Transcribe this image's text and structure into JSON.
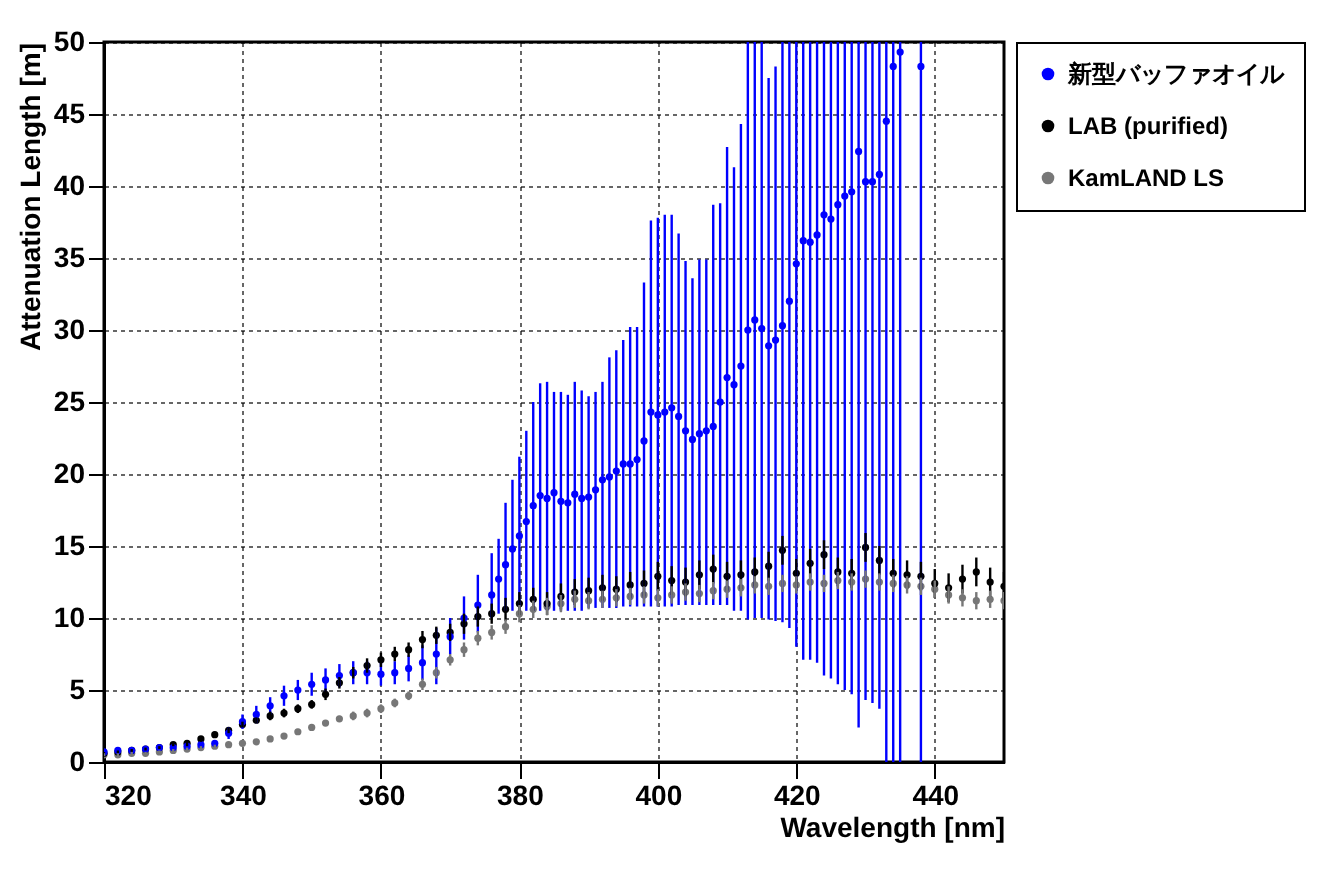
{
  "chart_data": {
    "type": "scatter",
    "xlabel": "Wavelength [nm]",
    "ylabel": "Attenuation Length [m]",
    "xlim": [
      320,
      450
    ],
    "xticks": [
      320,
      340,
      360,
      380,
      400,
      420,
      440
    ],
    "ylim": [
      0,
      50
    ],
    "yticks": [
      0,
      5,
      10,
      15,
      20,
      25,
      30,
      35,
      40,
      45,
      50
    ],
    "grid": true,
    "legend": "top right",
    "marker": "circle",
    "series": [
      {
        "name": "新型バッファオイル",
        "color": "#0000ff",
        "x": [
          320,
          322,
          324,
          326,
          328,
          330,
          332,
          334,
          336,
          338,
          340,
          342,
          344,
          346,
          348,
          350,
          352,
          354,
          356,
          358,
          360,
          362,
          364,
          366,
          368,
          370,
          372,
          374,
          376,
          377,
          378,
          379,
          380,
          381,
          382,
          383,
          384,
          385,
          386,
          387,
          388,
          389,
          390,
          391,
          392,
          393,
          394,
          395,
          396,
          397,
          398,
          399,
          400,
          401,
          402,
          403,
          404,
          405,
          406,
          407,
          408,
          409,
          410,
          411,
          412,
          413,
          414,
          415,
          416,
          417,
          418,
          419,
          420,
          421,
          422,
          423,
          424,
          425,
          426,
          427,
          428,
          429,
          430,
          431,
          432,
          433,
          434,
          435,
          438
        ],
        "values": [
          0.7,
          0.8,
          0.8,
          0.9,
          1.0,
          1.0,
          1.1,
          1.2,
          1.3,
          2.0,
          2.8,
          3.3,
          3.9,
          4.6,
          5.0,
          5.4,
          5.7,
          6.0,
          6.2,
          6.2,
          6.1,
          6.2,
          6.5,
          6.9,
          7.5,
          8.7,
          10.0,
          10.9,
          11.6,
          12.7,
          13.7,
          14.8,
          15.7,
          16.7,
          17.8,
          18.5,
          18.3,
          18.7,
          18.1,
          18.0,
          18.6,
          18.3,
          18.4,
          18.9,
          19.6,
          19.8,
          20.2,
          20.7,
          20.7,
          21.0,
          22.3,
          24.3,
          24.1,
          24.3,
          24.6,
          24.0,
          23.0,
          22.4,
          22.8,
          23.0,
          23.3,
          25.0,
          26.7,
          26.2,
          27.5,
          30.0,
          30.7,
          30.1,
          28.9,
          29.3,
          30.3,
          32.0,
          34.6,
          36.2,
          36.1,
          36.6,
          38.0,
          37.7,
          38.7,
          39.3,
          39.6,
          42.4,
          40.3,
          40.3,
          40.8,
          44.5,
          48.3,
          49.3,
          48.3
        ],
        "errors": [
          null,
          null,
          null,
          null,
          null,
          null,
          null,
          null,
          null,
          0.4,
          0.5,
          0.6,
          0.6,
          0.7,
          0.7,
          0.8,
          0.8,
          0.8,
          0.8,
          0.8,
          0.8,
          0.8,
          0.9,
          1.2,
          [
            5.4,
            9.3
          ],
          [
            7.5,
            10
          ],
          [
            8.5,
            11.5
          ],
          [
            9,
            13
          ],
          [
            10,
            14.5
          ],
          [
            10.3,
            15.5
          ],
          [
            10.5,
            18
          ],
          [
            10.5,
            19.6
          ],
          [
            10.5,
            21.2
          ],
          [
            10.5,
            23
          ],
          [
            10.5,
            25
          ],
          [
            10.5,
            26.3
          ],
          [
            10.5,
            26.4
          ],
          [
            10.5,
            25.7
          ],
          [
            10.5,
            25.7
          ],
          [
            10.5,
            25.5
          ],
          [
            10.5,
            26.4
          ],
          [
            10.5,
            25.8
          ],
          [
            10.7,
            25.4
          ],
          [
            10.7,
            25.7
          ],
          [
            10.7,
            26.4
          ],
          [
            10.7,
            28.1
          ],
          [
            10.7,
            28.6
          ],
          [
            10.8,
            29.3
          ],
          [
            10.8,
            30.2
          ],
          [
            10.8,
            30.2
          ],
          [
            10.8,
            33.3
          ],
          [
            10.8,
            37.6
          ],
          [
            10.8,
            37.8
          ],
          [
            10.8,
            38
          ],
          [
            10.8,
            38
          ],
          [
            10.9,
            36.7
          ],
          [
            10.9,
            34.8
          ],
          [
            10.9,
            33.6
          ],
          [
            10.9,
            34.9
          ],
          [
            10.9,
            34.9
          ],
          [
            10.9,
            38.7
          ],
          [
            10.9,
            38.8
          ],
          [
            10.9,
            42.7
          ],
          [
            10.5,
            41.3
          ],
          [
            10.5,
            44.3
          ],
          [
            9.9,
            50
          ],
          [
            10,
            50
          ],
          [
            10,
            50
          ],
          [
            9.9,
            47.5
          ],
          [
            9.8,
            48.3
          ],
          [
            9.7,
            50
          ],
          [
            9.3,
            50
          ],
          [
            8,
            50
          ],
          [
            7.1,
            50
          ],
          [
            7.1,
            50
          ],
          [
            6.9,
            50
          ],
          [
            6,
            50
          ],
          [
            5.8,
            50
          ],
          [
            5.4,
            50
          ],
          [
            5,
            50
          ],
          [
            4.7,
            50
          ],
          [
            2.4,
            50
          ],
          [
            4.3,
            50
          ],
          [
            4.1,
            50
          ],
          [
            3.7,
            50
          ],
          [
            0,
            50
          ],
          [
            0,
            50
          ],
          [
            0,
            50
          ],
          [
            0,
            50
          ]
        ]
      },
      {
        "name": "LAB (purified)",
        "color": "#000000",
        "x": [
          320,
          322,
          324,
          326,
          328,
          330,
          332,
          334,
          336,
          338,
          340,
          342,
          344,
          346,
          348,
          350,
          352,
          354,
          356,
          358,
          360,
          362,
          364,
          366,
          368,
          370,
          372,
          374,
          376,
          378,
          380,
          382,
          384,
          386,
          388,
          390,
          392,
          394,
          396,
          398,
          400,
          402,
          404,
          406,
          408,
          410,
          412,
          414,
          416,
          418,
          420,
          422,
          424,
          426,
          428,
          430,
          432,
          434,
          436,
          438,
          440,
          442,
          444,
          446,
          448,
          450
        ],
        "values": [
          0.6,
          0.7,
          0.8,
          0.9,
          1.0,
          1.2,
          1.3,
          1.6,
          1.9,
          2.2,
          2.6,
          2.9,
          3.2,
          3.4,
          3.7,
          4.0,
          4.7,
          5.5,
          6.2,
          6.7,
          7.1,
          7.5,
          7.8,
          8.5,
          8.8,
          9.0,
          9.6,
          10.1,
          10.3,
          10.6,
          11.0,
          11.3,
          11.0,
          11.5,
          11.8,
          11.9,
          12.1,
          12.0,
          12.3,
          12.4,
          12.9,
          12.6,
          12.5,
          13.0,
          13.4,
          12.9,
          13.0,
          13.2,
          13.6,
          14.7,
          13.1,
          13.8,
          14.4,
          13.2,
          13.1,
          14.9,
          14.0,
          13.1,
          13.0,
          12.9,
          12.4,
          12.1,
          12.7,
          13.2,
          12.5,
          12.2
        ],
        "errors": [
          0.1,
          0.1,
          0.1,
          0.1,
          0.1,
          0.1,
          0.2,
          0.2,
          0.2,
          0.2,
          0.2,
          0.2,
          0.3,
          0.3,
          0.3,
          0.3,
          0.4,
          0.4,
          0.4,
          0.5,
          0.5,
          0.5,
          0.5,
          0.6,
          0.6,
          0.6,
          0.7,
          0.7,
          0.7,
          0.8,
          0.8,
          0.8,
          0.8,
          0.9,
          0.9,
          0.9,
          0.9,
          0.9,
          0.9,
          0.9,
          1.0,
          1.0,
          1.0,
          1.0,
          1.0,
          1.0,
          1.0,
          1.0,
          1.0,
          1.0,
          1.0,
          1.0,
          1.0,
          1.0,
          1.0,
          1.0,
          1.0,
          1.0,
          1.0,
          1.0,
          1.0,
          1.0,
          1.0,
          1.0,
          1.0,
          1.0
        ]
      },
      {
        "name": "KamLAND LS",
        "color": "#777777",
        "x": [
          320,
          322,
          324,
          326,
          328,
          330,
          332,
          334,
          336,
          338,
          340,
          342,
          344,
          346,
          348,
          350,
          352,
          354,
          356,
          358,
          360,
          362,
          364,
          366,
          368,
          370,
          372,
          374,
          376,
          378,
          380,
          382,
          384,
          386,
          388,
          390,
          392,
          394,
          396,
          398,
          400,
          402,
          404,
          406,
          408,
          410,
          412,
          414,
          416,
          418,
          420,
          422,
          424,
          426,
          428,
          430,
          432,
          434,
          436,
          438,
          440,
          442,
          444,
          446,
          448,
          450
        ],
        "values": [
          0.5,
          0.5,
          0.6,
          0.6,
          0.7,
          0.8,
          0.9,
          1.0,
          1.1,
          1.2,
          1.3,
          1.4,
          1.6,
          1.8,
          2.1,
          2.4,
          2.7,
          3.0,
          3.2,
          3.4,
          3.7,
          4.1,
          4.6,
          5.4,
          6.2,
          7.1,
          7.8,
          8.6,
          9.0,
          9.4,
          10.3,
          10.6,
          10.8,
          11.0,
          11.3,
          11.2,
          11.3,
          11.4,
          11.5,
          11.6,
          11.4,
          11.6,
          11.8,
          11.7,
          11.9,
          12.0,
          12.1,
          12.3,
          12.2,
          12.4,
          12.3,
          12.5,
          12.4,
          12.6,
          12.5,
          12.7,
          12.5,
          12.4,
          12.3,
          12.2,
          12.0,
          11.6,
          11.4,
          11.2,
          11.3,
          11.2
        ],
        "errors": [
          0.1,
          0.1,
          0.1,
          0.1,
          0.1,
          0.1,
          0.1,
          0.1,
          0.1,
          0.1,
          0.2,
          0.2,
          0.2,
          0.2,
          0.2,
          0.2,
          0.2,
          0.2,
          0.3,
          0.3,
          0.3,
          0.3,
          0.3,
          0.4,
          0.4,
          0.4,
          0.5,
          0.5,
          0.5,
          0.5,
          0.6,
          0.6,
          0.6,
          0.6,
          0.6,
          0.6,
          0.6,
          0.6,
          0.6,
          0.6,
          0.6,
          0.6,
          0.6,
          0.6,
          0.6,
          0.6,
          0.6,
          0.6,
          0.6,
          0.6,
          0.6,
          0.6,
          0.6,
          0.6,
          0.6,
          0.6,
          0.6,
          0.6,
          0.6,
          0.6,
          0.6,
          0.6,
          0.6,
          0.6,
          0.6,
          0.6
        ]
      }
    ]
  }
}
